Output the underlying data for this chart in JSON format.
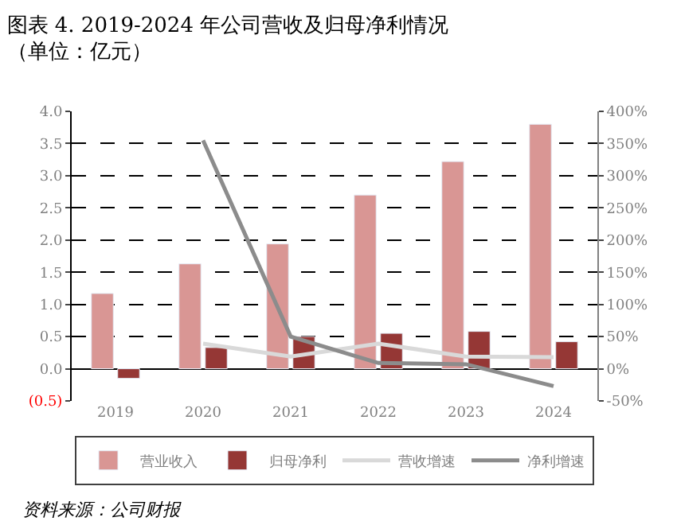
{
  "chart_data": {
    "type": "bar",
    "title": "图表 4. 2019-2024 年公司营收及归母净利情况",
    "subtitle": "（单位：亿元）",
    "categories": [
      "2019",
      "2020",
      "2021",
      "2022",
      "2023",
      "2024"
    ],
    "series": [
      {
        "name": "营业收入",
        "color": "#d99694",
        "values": [
          1.17,
          1.63,
          1.94,
          2.7,
          3.22,
          3.8
        ]
      },
      {
        "name": "归母净利",
        "color": "#953735",
        "values": [
          -0.15,
          0.33,
          0.5,
          0.55,
          0.58,
          0.42
        ]
      },
      {
        "name": "营收增速",
        "type": "line",
        "axis": "y2",
        "color": "#d9d9d9",
        "values": [
          null,
          39,
          19,
          39,
          19,
          18
        ]
      },
      {
        "name": "净利增速",
        "type": "line",
        "axis": "y2",
        "color": "#8c8c8c",
        "values": [
          null,
          355,
          50,
          9,
          7,
          -27
        ]
      }
    ],
    "ylim": [
      -0.5,
      4.0
    ],
    "yticks": [
      {
        "value": -0.5,
        "label": "(0.5)"
      },
      {
        "value": 0.0,
        "label": "0.0"
      },
      {
        "value": 0.5,
        "label": "0.5"
      },
      {
        "value": 1.0,
        "label": "1.0"
      },
      {
        "value": 1.5,
        "label": "1.5"
      },
      {
        "value": 2.0,
        "label": "2.0"
      },
      {
        "value": 2.5,
        "label": "2.5"
      },
      {
        "value": 3.0,
        "label": "3.0"
      },
      {
        "value": 3.5,
        "label": "3.5"
      },
      {
        "value": 4.0,
        "label": "4.0"
      }
    ],
    "y2lim": [
      -50,
      400
    ],
    "y2ticks": [
      {
        "value": -50,
        "label": "-50%"
      },
      {
        "value": 0,
        "label": "0%"
      },
      {
        "value": 50,
        "label": "50%"
      },
      {
        "value": 100,
        "label": "100%"
      },
      {
        "value": 150,
        "label": "150%"
      },
      {
        "value": 200,
        "label": "200%"
      },
      {
        "value": 250,
        "label": "250%"
      },
      {
        "value": 300,
        "label": "300%"
      },
      {
        "value": 350,
        "label": "350%"
      },
      {
        "value": 400,
        "label": "400%"
      }
    ],
    "grid": "y",
    "legend": "bottom",
    "marker": "none",
    "annotations": [
      "资料来源：公司财报"
    ]
  }
}
